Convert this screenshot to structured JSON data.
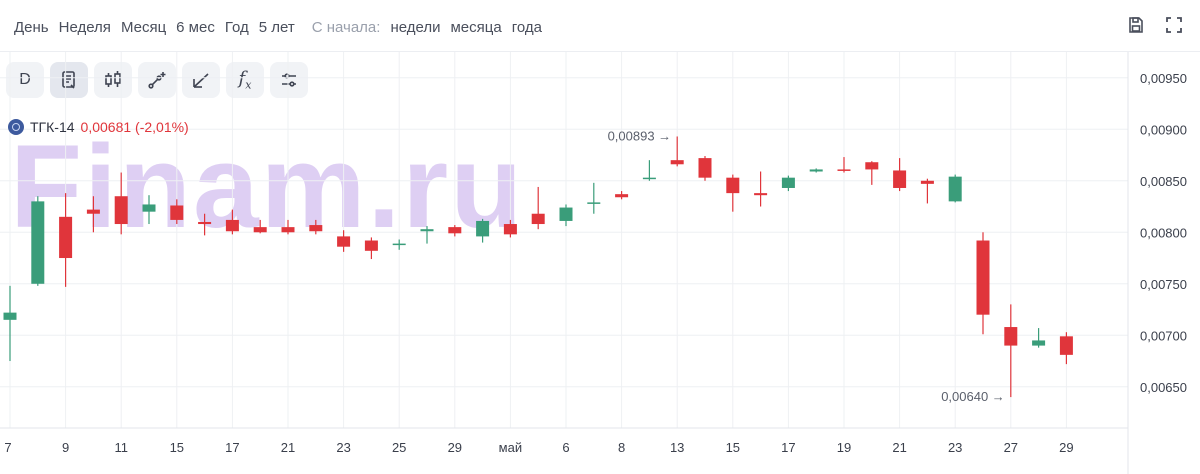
{
  "periods": [
    "День",
    "Неделя",
    "Месяц",
    "6 мес",
    "Год",
    "5 лет"
  ],
  "since_label": "С начала:",
  "since_options": [
    "недели",
    "месяца",
    "года"
  ],
  "toolbar": [
    "D",
    "trend-lines",
    "candles",
    "draw-plus",
    "brush",
    "fx",
    "settings"
  ],
  "toolbar_d_label": "D",
  "ticker": {
    "name": "ТГК-14",
    "price": "0,00681 (-2,01%)"
  },
  "watermark": "Finam.ru",
  "colors": {
    "up": "#3a9d7a",
    "down": "#e0353b",
    "grid": "#eef0f3"
  },
  "chart_data": {
    "type": "candlestick",
    "ylim": [
      0.0061,
      0.00975
    ],
    "y_ticks": [
      "0,00950",
      "0,00900",
      "0,00850",
      "0,00800",
      "0,00750",
      "0,00700",
      "0,00650"
    ],
    "y_tick_values": [
      0.0095,
      0.009,
      0.0085,
      0.008,
      0.0075,
      0.007,
      0.0065
    ],
    "x_labels": [
      {
        "i": 0,
        "label": "7"
      },
      {
        "i": 2,
        "label": "9"
      },
      {
        "i": 4,
        "label": "11"
      },
      {
        "i": 6,
        "label": "15"
      },
      {
        "i": 8,
        "label": "17"
      },
      {
        "i": 10,
        "label": "21"
      },
      {
        "i": 12,
        "label": "23"
      },
      {
        "i": 14,
        "label": "25"
      },
      {
        "i": 16,
        "label": "29"
      },
      {
        "i": 18,
        "label": "май"
      },
      {
        "i": 20,
        "label": "6"
      },
      {
        "i": 22,
        "label": "8"
      },
      {
        "i": 24,
        "label": "13"
      },
      {
        "i": 26,
        "label": "15"
      },
      {
        "i": 28,
        "label": "17"
      },
      {
        "i": 30,
        "label": "19"
      },
      {
        "i": 32,
        "label": "21"
      },
      {
        "i": 34,
        "label": "23"
      },
      {
        "i": 36,
        "label": "27"
      },
      {
        "i": 38,
        "label": "29"
      }
    ],
    "candles": [
      {
        "o": 0.00715,
        "h": 0.00748,
        "l": 0.00675,
        "c": 0.00722
      },
      {
        "o": 0.0075,
        "h": 0.00835,
        "l": 0.00748,
        "c": 0.0083
      },
      {
        "o": 0.00815,
        "h": 0.00838,
        "l": 0.00747,
        "c": 0.00775
      },
      {
        "o": 0.00822,
        "h": 0.00835,
        "l": 0.008,
        "c": 0.00818
      },
      {
        "o": 0.00835,
        "h": 0.00858,
        "l": 0.00798,
        "c": 0.00808
      },
      {
        "o": 0.0082,
        "h": 0.00836,
        "l": 0.00808,
        "c": 0.00827
      },
      {
        "o": 0.00826,
        "h": 0.00832,
        "l": 0.00808,
        "c": 0.00812
      },
      {
        "o": 0.0081,
        "h": 0.00818,
        "l": 0.00797,
        "c": 0.00808
      },
      {
        "o": 0.00812,
        "h": 0.00822,
        "l": 0.00798,
        "c": 0.00801
      },
      {
        "o": 0.00805,
        "h": 0.00812,
        "l": 0.00799,
        "c": 0.008
      },
      {
        "o": 0.00805,
        "h": 0.00812,
        "l": 0.00798,
        "c": 0.008
      },
      {
        "o": 0.00807,
        "h": 0.00812,
        "l": 0.00798,
        "c": 0.00801
      },
      {
        "o": 0.00796,
        "h": 0.00802,
        "l": 0.00781,
        "c": 0.00786
      },
      {
        "o": 0.00792,
        "h": 0.00795,
        "l": 0.00774,
        "c": 0.00782
      },
      {
        "o": 0.00788,
        "h": 0.00793,
        "l": 0.00783,
        "c": 0.00789
      },
      {
        "o": 0.00801,
        "h": 0.00806,
        "l": 0.00789,
        "c": 0.00803
      },
      {
        "o": 0.00805,
        "h": 0.00807,
        "l": 0.00796,
        "c": 0.00799
      },
      {
        "o": 0.00796,
        "h": 0.00813,
        "l": 0.0079,
        "c": 0.00811
      },
      {
        "o": 0.00808,
        "h": 0.00812,
        "l": 0.00795,
        "c": 0.00798
      },
      {
        "o": 0.00818,
        "h": 0.00844,
        "l": 0.00803,
        "c": 0.00808
      },
      {
        "o": 0.00811,
        "h": 0.00827,
        "l": 0.00806,
        "c": 0.00824
      },
      {
        "o": 0.00828,
        "h": 0.00848,
        "l": 0.00818,
        "c": 0.00829
      },
      {
        "o": 0.00837,
        "h": 0.0084,
        "l": 0.00832,
        "c": 0.00834
      },
      {
        "o": 0.00852,
        "h": 0.0087,
        "l": 0.0085,
        "c": 0.00853
      },
      {
        "o": 0.0087,
        "h": 0.00893,
        "l": 0.00864,
        "c": 0.00866
      },
      {
        "o": 0.00872,
        "h": 0.00874,
        "l": 0.0085,
        "c": 0.00853
      },
      {
        "o": 0.00853,
        "h": 0.00856,
        "l": 0.0082,
        "c": 0.00838
      },
      {
        "o": 0.00838,
        "h": 0.00859,
        "l": 0.00825,
        "c": 0.00836
      },
      {
        "o": 0.00843,
        "h": 0.00855,
        "l": 0.0084,
        "c": 0.00853
      },
      {
        "o": 0.00859,
        "h": 0.00862,
        "l": 0.00858,
        "c": 0.00861
      },
      {
        "o": 0.00861,
        "h": 0.00873,
        "l": 0.00858,
        "c": 0.0086
      },
      {
        "o": 0.00868,
        "h": 0.00869,
        "l": 0.00846,
        "c": 0.00861
      },
      {
        "o": 0.0086,
        "h": 0.00872,
        "l": 0.0084,
        "c": 0.00843
      },
      {
        "o": 0.0085,
        "h": 0.00852,
        "l": 0.00828,
        "c": 0.00847
      },
      {
        "o": 0.0083,
        "h": 0.00856,
        "l": 0.00829,
        "c": 0.00854
      },
      {
        "o": 0.00792,
        "h": 0.008,
        "l": 0.00701,
        "c": 0.0072
      },
      {
        "o": 0.00708,
        "h": 0.0073,
        "l": 0.0064,
        "c": 0.0069
      },
      {
        "o": 0.0069,
        "h": 0.00707,
        "l": 0.00688,
        "c": 0.00695
      },
      {
        "o": 0.00699,
        "h": 0.00703,
        "l": 0.00672,
        "c": 0.00681
      }
    ],
    "annotations": [
      {
        "text": "0,00893 →",
        "i": 24,
        "value": 0.00893
      },
      {
        "text": "0,00640 →",
        "i": 36,
        "value": 0.0064
      }
    ]
  }
}
